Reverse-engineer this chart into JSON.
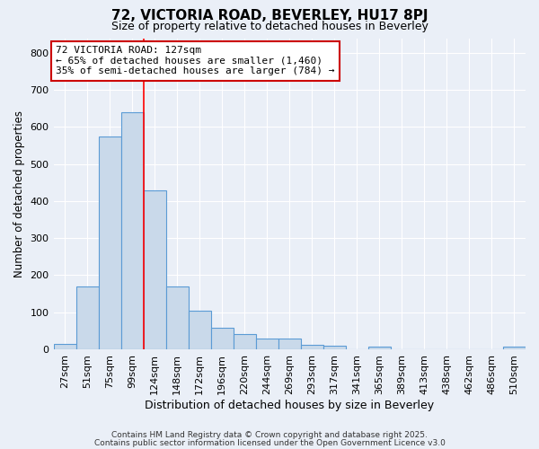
{
  "title": "72, VICTORIA ROAD, BEVERLEY, HU17 8PJ",
  "subtitle": "Size of property relative to detached houses in Beverley",
  "xlabel": "Distribution of detached houses by size in Beverley",
  "ylabel": "Number of detached properties",
  "bar_labels": [
    "27sqm",
    "51sqm",
    "75sqm",
    "99sqm",
    "124sqm",
    "148sqm",
    "172sqm",
    "196sqm",
    "220sqm",
    "244sqm",
    "269sqm",
    "293sqm",
    "317sqm",
    "341sqm",
    "365sqm",
    "389sqm",
    "413sqm",
    "438sqm",
    "462sqm",
    "486sqm",
    "510sqm"
  ],
  "bar_values": [
    15,
    170,
    575,
    640,
    430,
    170,
    103,
    57,
    40,
    30,
    30,
    13,
    10,
    0,
    8,
    0,
    0,
    0,
    0,
    0,
    7
  ],
  "bar_color": "#c9d9ea",
  "bar_edge_color": "#5b9bd5",
  "red_line_x": 3.5,
  "annotation_text": "72 VICTORIA ROAD: 127sqm\n← 65% of detached houses are smaller (1,460)\n35% of semi-detached houses are larger (784) →",
  "annotation_box_color": "#ffffff",
  "annotation_box_edge": "#cc0000",
  "ylim": [
    0,
    840
  ],
  "yticks": [
    0,
    100,
    200,
    300,
    400,
    500,
    600,
    700,
    800
  ],
  "background_color": "#eaeff7",
  "grid_color": "#ffffff",
  "footer_line1": "Contains HM Land Registry data © Crown copyright and database right 2025.",
  "footer_line2": "Contains public sector information licensed under the Open Government Licence v3.0"
}
